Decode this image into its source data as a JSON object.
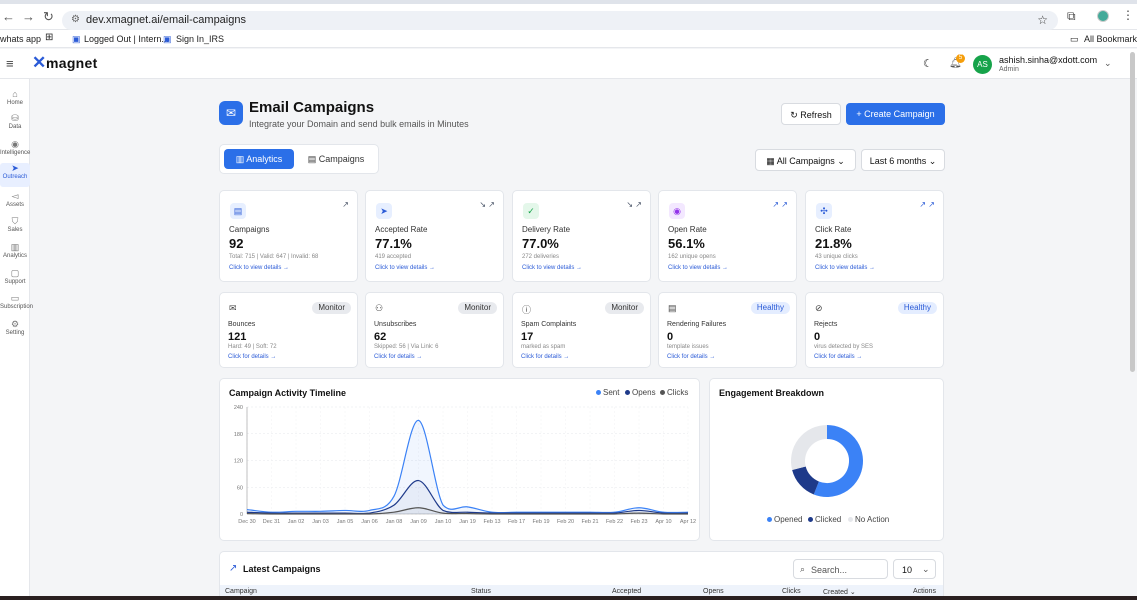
{
  "browser": {
    "url": "dev.xmagnet.ai/email-campaigns",
    "bookmarks": [
      "whats app",
      "Logged Out | Intern...",
      "Sign In_IRS"
    ],
    "all_bookmarks": "All Bookmarks"
  },
  "app": {
    "logo": "magnet",
    "notifications": "5",
    "user": {
      "initials": "AS",
      "email": "ashish.sinha@xdott.com",
      "role": "Admin"
    }
  },
  "sidebar": {
    "items": [
      {
        "label": "Home",
        "icon": "home-icon"
      },
      {
        "label": "Data",
        "icon": "database-icon"
      },
      {
        "label": "Intelligence",
        "icon": "lightbulb-icon"
      },
      {
        "label": "Outreach",
        "icon": "send-icon"
      },
      {
        "label": "Assets",
        "icon": "megaphone-icon"
      },
      {
        "label": "Sales",
        "icon": "shield-icon"
      },
      {
        "label": "Analytics",
        "icon": "bar-chart-icon"
      },
      {
        "label": "Support",
        "icon": "chat-icon"
      },
      {
        "label": "Subscription",
        "icon": "card-icon"
      },
      {
        "label": "Setting",
        "icon": "gear-icon"
      }
    ]
  },
  "header": {
    "title": "Email Campaigns",
    "subtitle": "Integrate your Domain and send bulk emails in Minutes",
    "refresh": "Refresh",
    "create": "Create Campaign"
  },
  "tabs": {
    "analytics": "Analytics",
    "campaigns": "Campaigns"
  },
  "filters": {
    "campaign": "All Campaigns",
    "period": "Last 6 months"
  },
  "stats": [
    {
      "title": "Campaigns",
      "value": "92",
      "sub": "Total: 715 | Valid: 647 | Invalid: 68",
      "link": "Click to view details →"
    },
    {
      "title": "Accepted Rate",
      "value": "77.1%",
      "sub": "419 accepted",
      "link": "Click to view details →"
    },
    {
      "title": "Delivery Rate",
      "value": "77.0%",
      "sub": "272 deliveries",
      "link": "Click to view details →"
    },
    {
      "title": "Open Rate",
      "value": "56.1%",
      "sub": "162 unique opens",
      "link": "Click to view details →"
    },
    {
      "title": "Click Rate",
      "value": "21.8%",
      "sub": "43 unique clicks",
      "link": "Click to view details →"
    }
  ],
  "health": [
    {
      "title": "Bounces",
      "value": "121",
      "sub": "Hard: 49 | Soft: 72",
      "badge": "Monitor",
      "link": "Click for details →"
    },
    {
      "title": "Unsubscribes",
      "value": "62",
      "sub": "Skipped: 56 | Via Link: 6",
      "badge": "Monitor",
      "link": "Click for details →"
    },
    {
      "title": "Spam Complaints",
      "value": "17",
      "sub": "marked as spam",
      "badge": "Monitor",
      "link": "Click for details →"
    },
    {
      "title": "Rendering Failures",
      "value": "0",
      "sub": "template issues",
      "badge": "Healthy",
      "link": "Click for details →"
    },
    {
      "title": "Rejects",
      "value": "0",
      "sub": "virus detected by SES",
      "badge": "Healthy",
      "link": "Click for details →"
    }
  ],
  "chart_data": [
    {
      "type": "line",
      "title": "Campaign Activity Timeline",
      "x": [
        "Dec 30",
        "Dec 31",
        "Jan 02",
        "Jan 03",
        "Jan 05",
        "Jan 06",
        "Jan 08",
        "Jan 09",
        "Jan 10",
        "Jan 19",
        "Feb 13",
        "Feb 17",
        "Feb 19",
        "Feb 20",
        "Feb 21",
        "Feb 22",
        "Feb 23",
        "Apr 10",
        "Apr 12"
      ],
      "ylim": [
        0,
        240
      ],
      "yticks": [
        0,
        60,
        120,
        180,
        240
      ],
      "series": [
        {
          "name": "Sent",
          "color": "#3b82f6",
          "values": [
            10,
            4,
            6,
            6,
            8,
            8,
            40,
            210,
            20,
            16,
            4,
            4,
            4,
            4,
            4,
            4,
            14,
            4,
            4
          ]
        },
        {
          "name": "Opens",
          "color": "#1e3a8a",
          "values": [
            4,
            2,
            2,
            2,
            2,
            2,
            20,
            75,
            8,
            4,
            2,
            2,
            2,
            2,
            2,
            2,
            8,
            2,
            2
          ]
        },
        {
          "name": "Clicks",
          "color": "#555555",
          "values": [
            1,
            0,
            0,
            0,
            0,
            0,
            4,
            14,
            2,
            1,
            0,
            0,
            0,
            0,
            0,
            0,
            2,
            0,
            0
          ]
        }
      ]
    },
    {
      "type": "pie",
      "title": "Engagement Breakdown",
      "categories": [
        "Opened",
        "Clicked",
        "No Action"
      ],
      "values": [
        56,
        15,
        29
      ],
      "colors": [
        "#3b82f6",
        "#1e3a8a",
        "#e5e7eb"
      ]
    }
  ],
  "latest": {
    "title": "Latest Campaigns",
    "search_placeholder": "Search...",
    "page_size": "10",
    "columns": [
      "Campaign",
      "Status",
      "Accepted",
      "Opens",
      "Clicks",
      "Created",
      "Actions"
    ]
  }
}
